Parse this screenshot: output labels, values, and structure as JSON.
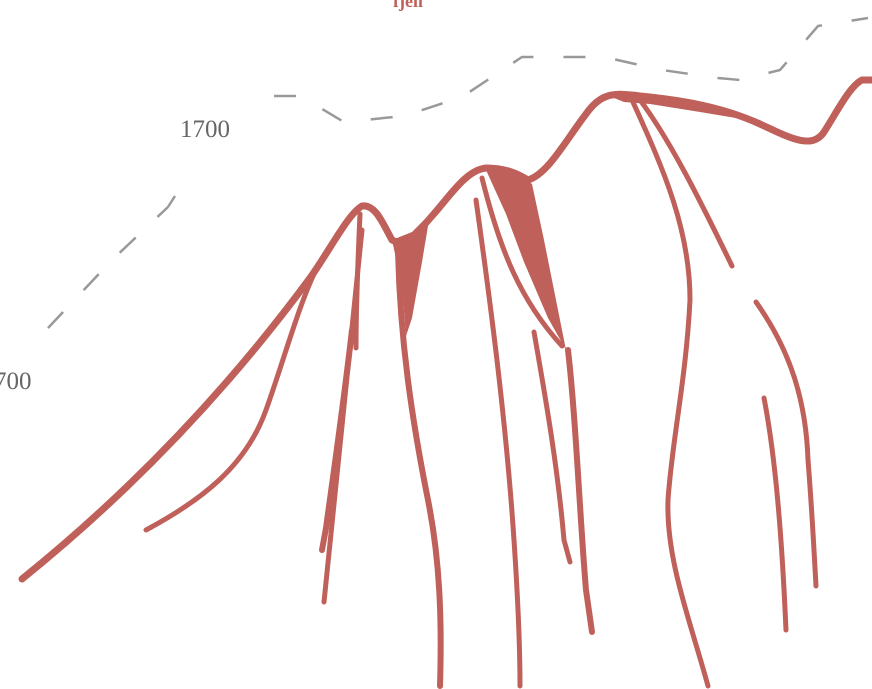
{
  "map": {
    "feature_label": "fjell",
    "contour_labels": [
      "1700",
      "700"
    ],
    "colors": {
      "terrain": "#c0605a",
      "contour": "#999999",
      "contour_label": "#666666",
      "background": "#ffffff"
    }
  }
}
